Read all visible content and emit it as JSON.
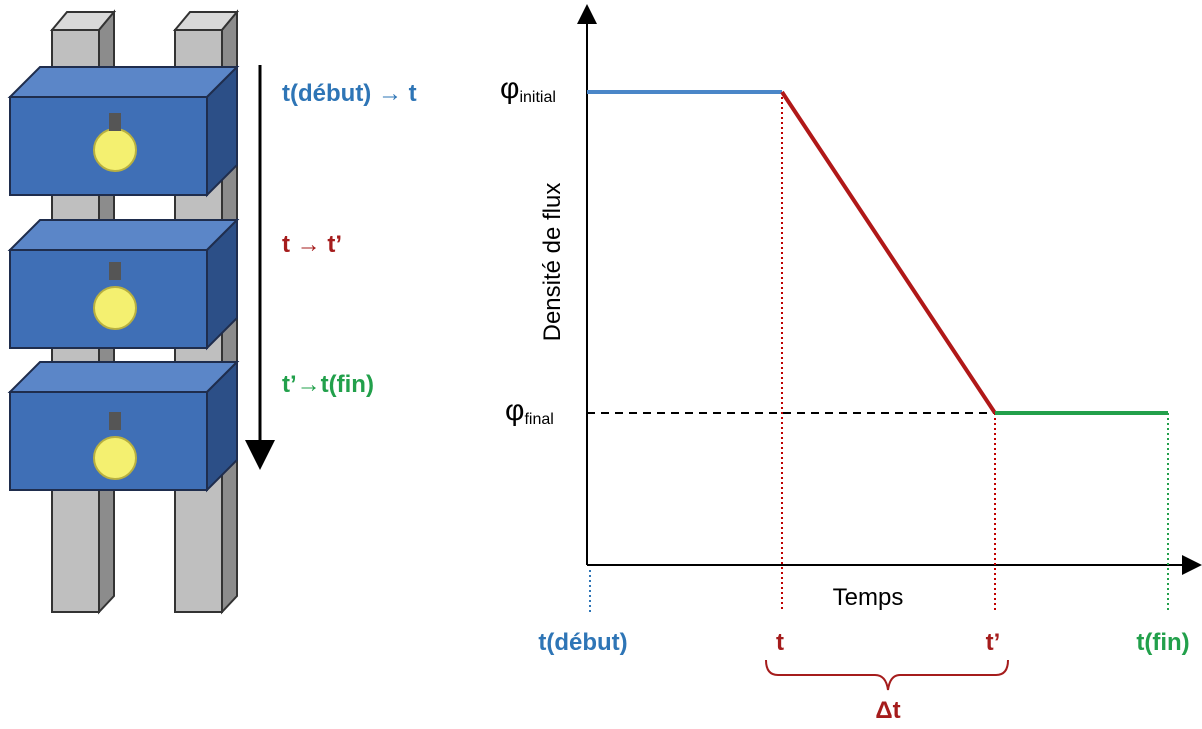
{
  "sequence": {
    "steps": [
      {
        "label": "t(début) → t",
        "color": "#2e75b6"
      },
      {
        "label": "t → t’",
        "color": "#a51c1c"
      },
      {
        "label": "t’→t(fin)",
        "color": "#22a04b"
      }
    ]
  },
  "graph": {
    "y_axis_label": "Densité de flux",
    "x_axis_label": "Temps",
    "levels": [
      {
        "symbol": "φ",
        "subscript": "initial"
      },
      {
        "symbol": "φ",
        "subscript": "final"
      }
    ],
    "time_labels": [
      "t(début)",
      "t",
      "t’",
      "t(fin)"
    ],
    "interval_label": "Δt"
  }
}
